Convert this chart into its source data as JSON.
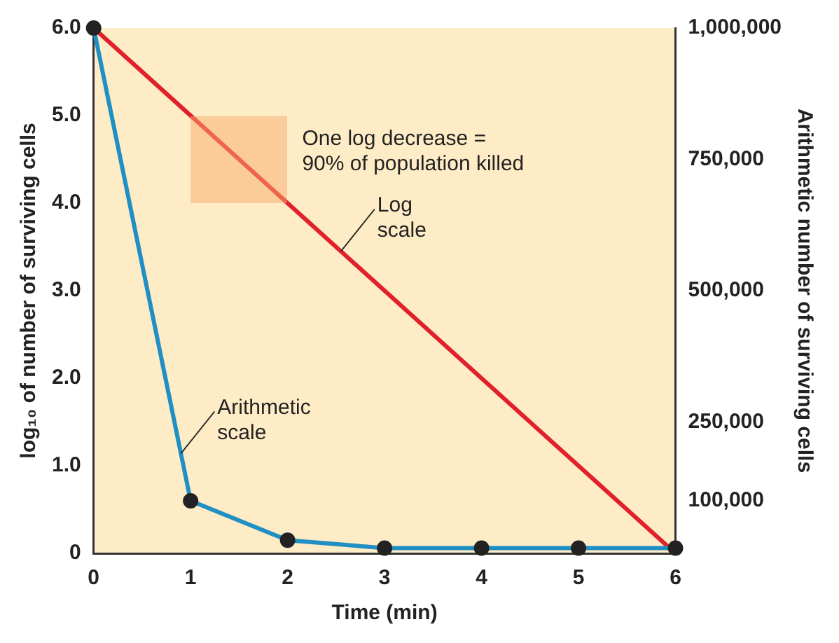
{
  "chart_data": {
    "type": "line",
    "xlabel": "Time (min)",
    "ylabel": "log₁₀ of number of surviving cells",
    "y2label": "Arithmetic number of surviving cells",
    "x": [
      0,
      1,
      2,
      3,
      4,
      5,
      6
    ],
    "series": [
      {
        "color": "#e0202a",
        "values": [
          6,
          5,
          4,
          3,
          2,
          1,
          0
        ],
        "marker": "none"
      },
      {
        "color": "#1f8fc4",
        "axis": "y2",
        "values": [
          1000000,
          100000,
          25000,
          10000,
          10000,
          10000,
          10000
        ],
        "marker": "circle"
      }
    ],
    "xlim": [
      0,
      6
    ],
    "xticks": [
      0,
      1,
      2,
      3,
      4,
      5,
      6
    ],
    "ylim": [
      0,
      6
    ],
    "yticks": [
      0,
      {
        "value": 1,
        "label": "1.0"
      },
      {
        "value": 2,
        "label": "2.0"
      },
      {
        "value": 3,
        "label": "3.0"
      },
      {
        "value": 4,
        "label": "4.0"
      },
      {
        "value": 5,
        "label": "5.0"
      },
      {
        "value": 6,
        "label": "6.0"
      }
    ],
    "y2lim": [
      0,
      1000000
    ],
    "y2ticks": [
      {
        "value": 100000,
        "label": "100,000"
      },
      {
        "value": 250000,
        "label": "250,000"
      },
      {
        "value": 500000,
        "label": "500,000"
      },
      {
        "value": 750000,
        "label": "750,000"
      },
      {
        "value": 1000000,
        "label": "1,000,000"
      }
    ],
    "annotations": [
      "One log decrease =\n90% of population killed",
      {
        "text": "Log\nscale",
        "x": 2.55,
        "y": 3.45
      },
      {
        "text": "Arithmetic\nscale",
        "x": 0.9,
        "y": 1.14
      }
    ],
    "grid": false,
    "legend": false
  }
}
